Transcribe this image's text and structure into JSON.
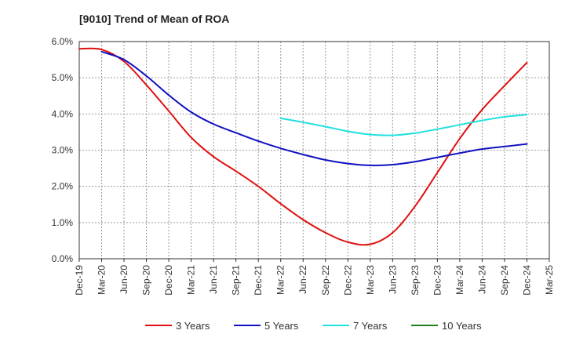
{
  "chart_data": {
    "type": "line",
    "title": "[9010]  Trend of Mean of ROA",
    "xlabel": "",
    "ylabel": "",
    "ylim": [
      0,
      6
    ],
    "yticks": [
      "0.0%",
      "1.0%",
      "2.0%",
      "3.0%",
      "4.0%",
      "5.0%",
      "6.0%"
    ],
    "categories": [
      "Dec-19",
      "Mar-20",
      "Jun-20",
      "Sep-20",
      "Dec-20",
      "Mar-21",
      "Jun-21",
      "Sep-21",
      "Dec-21",
      "Mar-22",
      "Jun-22",
      "Sep-22",
      "Dec-22",
      "Mar-23",
      "Jun-23",
      "Sep-23",
      "Dec-23",
      "Mar-24",
      "Jun-24",
      "Sep-24",
      "Dec-24",
      "Mar-25"
    ],
    "grid": "vertical-dotted",
    "legend_position": "bottom",
    "series": [
      {
        "name": "3 Years",
        "color": "#e01010",
        "values": [
          5.8,
          5.78,
          5.45,
          4.8,
          4.08,
          3.35,
          2.82,
          2.42,
          2.0,
          1.52,
          1.08,
          0.72,
          0.46,
          0.4,
          0.72,
          1.45,
          2.38,
          3.32,
          4.12,
          4.78,
          5.42,
          null
        ]
      },
      {
        "name": "5 Years",
        "color": "#1010c0",
        "values": [
          null,
          5.72,
          5.5,
          5.05,
          4.52,
          4.05,
          3.72,
          3.48,
          3.25,
          3.05,
          2.88,
          2.73,
          2.63,
          2.58,
          2.6,
          2.68,
          2.8,
          2.92,
          3.03,
          3.1,
          3.17,
          null
        ]
      },
      {
        "name": "7 Years",
        "color": "#20e0e0",
        "values": [
          null,
          null,
          null,
          null,
          null,
          null,
          null,
          null,
          null,
          3.88,
          3.77,
          3.65,
          3.52,
          3.43,
          3.41,
          3.47,
          3.58,
          3.7,
          3.82,
          3.92,
          3.98,
          null
        ]
      },
      {
        "name": "10 Years",
        "color": "#208020",
        "values": [
          null,
          null,
          null,
          null,
          null,
          null,
          null,
          null,
          null,
          null,
          null,
          null,
          null,
          null,
          null,
          null,
          null,
          null,
          null,
          null,
          null,
          null
        ]
      }
    ]
  }
}
